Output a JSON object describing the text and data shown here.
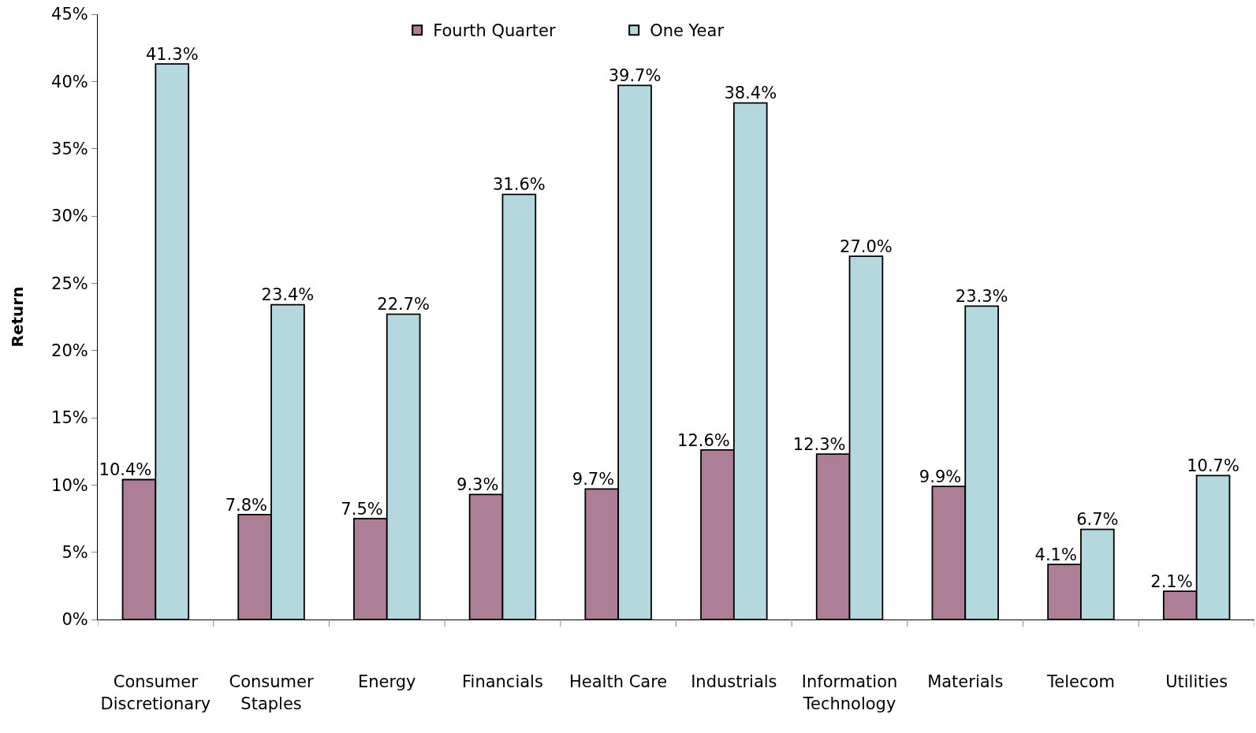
{
  "chart_data": {
    "type": "bar",
    "ylabel": "Return",
    "categories": [
      "Consumer\nDiscretionary",
      "Consumer\nStaples",
      "Energy",
      "Financials",
      "Health Care",
      "Industrials",
      "Information\nTechnology",
      "Materials",
      "Telecom",
      "Utilities"
    ],
    "series": [
      {
        "name": "Fourth Quarter",
        "color": "#ad7f96",
        "values": [
          10.4,
          7.8,
          7.5,
          9.3,
          9.7,
          12.6,
          12.3,
          9.9,
          4.1,
          2.1
        ],
        "value_labels": [
          "10.4%",
          "7.8%",
          "7.5%",
          "9.3%",
          "9.7%",
          "12.6%",
          "12.3%",
          "9.9%",
          "4.1%",
          "2.1%"
        ]
      },
      {
        "name": "One Year",
        "color": "#b4d8de",
        "values": [
          41.3,
          23.4,
          22.7,
          31.6,
          39.7,
          38.4,
          27.0,
          23.3,
          6.7,
          10.7
        ],
        "value_labels": [
          "41.3%",
          "23.4%",
          "22.7%",
          "31.6%",
          "39.7%",
          "38.4%",
          "27.0%",
          "23.3%",
          "6.7%",
          "10.7%"
        ]
      }
    ],
    "ylim": [
      0,
      45
    ],
    "yticks": [
      {
        "value": 0,
        "label": "0%"
      },
      {
        "value": 5,
        "label": "5%"
      },
      {
        "value": 10,
        "label": "10%"
      },
      {
        "value": 15,
        "label": "15%"
      },
      {
        "value": 20,
        "label": "20%"
      },
      {
        "value": 25,
        "label": "25%"
      },
      {
        "value": 30,
        "label": "30%"
      },
      {
        "value": 35,
        "label": "35%"
      },
      {
        "value": 40,
        "label": "40%"
      },
      {
        "value": 45,
        "label": "45%"
      }
    ],
    "grid": false,
    "legend": "top"
  }
}
